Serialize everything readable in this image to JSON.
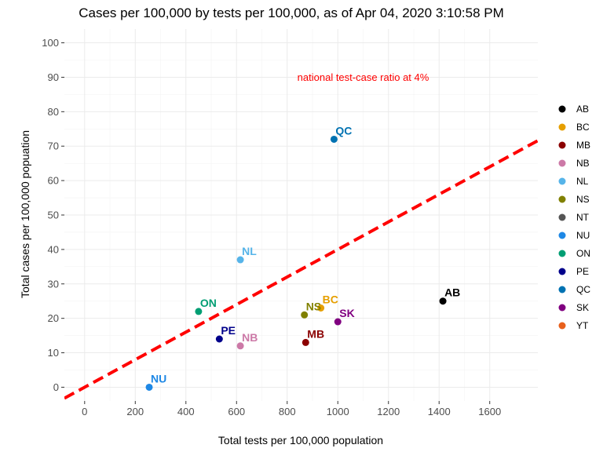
{
  "chart_data": {
    "type": "scatter",
    "title": "Cases per 100,000 by tests per 100,000, as of  Apr 04, 2020 3:10:58 PM",
    "xlabel": "Total tests per 100,000 population",
    "ylabel": "Total cases per 100,000 popuation",
    "xlim": [
      -80,
      1790
    ],
    "ylim": [
      -4,
      104
    ],
    "xticks": [
      0,
      200,
      400,
      600,
      800,
      1000,
      1200,
      1400,
      1600
    ],
    "yticks": [
      0,
      10,
      20,
      30,
      40,
      50,
      60,
      70,
      80,
      90,
      100
    ],
    "grid": true,
    "legend_position": "right",
    "points": [
      {
        "name": "AB",
        "x": 1415,
        "y": 25,
        "color": "#000000"
      },
      {
        "name": "BC",
        "x": 933,
        "y": 23,
        "color": "#E69F00"
      },
      {
        "name": "MB",
        "x": 873,
        "y": 13,
        "color": "#8B0000"
      },
      {
        "name": "NB",
        "x": 615,
        "y": 12,
        "color": "#CC79A7"
      },
      {
        "name": "NL",
        "x": 615,
        "y": 37,
        "color": "#56B4E9"
      },
      {
        "name": "NS",
        "x": 868,
        "y": 21,
        "color": "#808000"
      },
      {
        "name": "NU",
        "x": 255,
        "y": 0,
        "color": "#1E88E5"
      },
      {
        "name": "ON",
        "x": 450,
        "y": 22,
        "color": "#009E73"
      },
      {
        "name": "PE",
        "x": 532,
        "y": 14,
        "color": "#00008B"
      },
      {
        "name": "QC",
        "x": 985,
        "y": 72,
        "color": "#0072B2"
      },
      {
        "name": "SK",
        "x": 1000,
        "y": 19,
        "color": "#800080"
      }
    ],
    "legend": [
      {
        "label": "AB",
        "color": "#000000"
      },
      {
        "label": "BC",
        "color": "#E69F00"
      },
      {
        "label": "MB",
        "color": "#8B0000"
      },
      {
        "label": "NB",
        "color": "#CC79A7"
      },
      {
        "label": "NL",
        "color": "#56B4E9"
      },
      {
        "label": "NS",
        "color": "#808000"
      },
      {
        "label": "NT",
        "color": "#555555"
      },
      {
        "label": "NU",
        "color": "#1E88E5"
      },
      {
        "label": "ON",
        "color": "#009E73"
      },
      {
        "label": "PE",
        "color": "#00008B"
      },
      {
        "label": "QC",
        "color": "#0072B2"
      },
      {
        "label": "SK",
        "color": "#800080"
      },
      {
        "label": "YT",
        "color": "#E8601C"
      }
    ],
    "reference_line": {
      "slope": 0.04,
      "intercept": 0,
      "color": "#FF0000",
      "style": "dashed"
    },
    "annotation": {
      "text": "national test-case ratio at 4%",
      "color": "#FF0000",
      "x": 1100,
      "y": 89
    }
  }
}
